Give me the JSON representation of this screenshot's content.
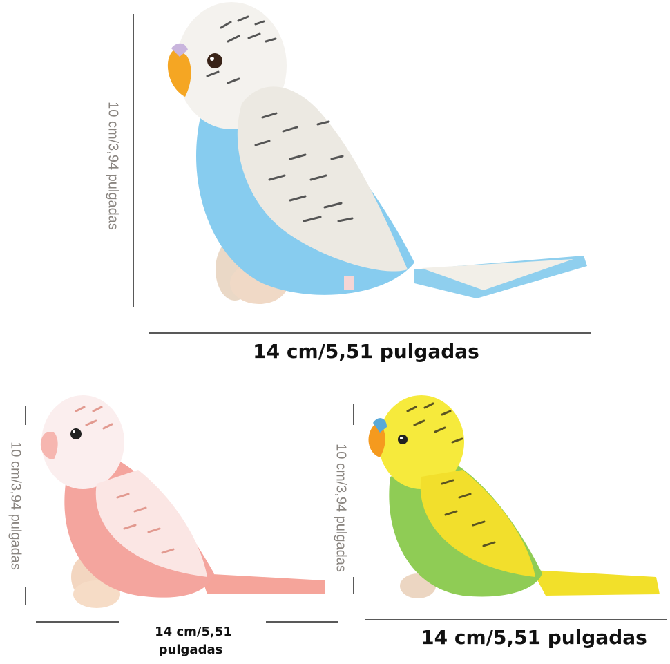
{
  "products": [
    {
      "height_label": "10 cm/3,94 pulgadas",
      "width_label": "14 cm/5,51 pulgadas"
    },
    {
      "height_label": "10 cm/3,94 pulgadas",
      "width_label_lines": [
        "14 cm/5,51",
        "pulgadas"
      ]
    },
    {
      "height_label": "10 cm/3,94 pulgadas",
      "width_label": "14 cm/5,51 pulgadas"
    }
  ]
}
